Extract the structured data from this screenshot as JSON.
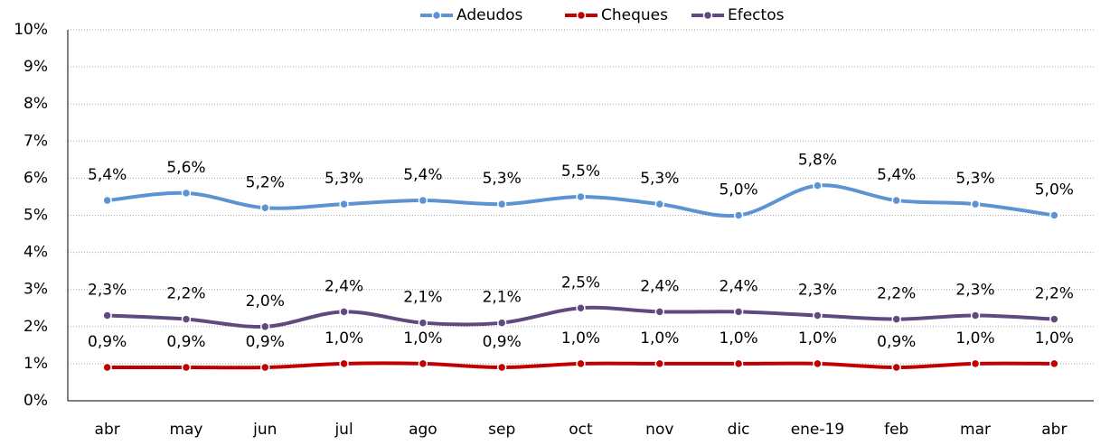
{
  "chart_data": {
    "type": "line",
    "categories": [
      "abr",
      "may",
      "jun",
      "jul",
      "ago",
      "sep",
      "oct",
      "nov",
      "dic",
      "ene-19",
      "feb",
      "mar",
      "abr"
    ],
    "series": [
      {
        "name": "Adeudos",
        "color": "#5b93d3",
        "values": [
          5.4,
          5.6,
          5.2,
          5.3,
          5.4,
          5.3,
          5.5,
          5.3,
          5.0,
          5.8,
          5.4,
          5.3,
          5.0
        ],
        "value_labels": [
          "5,4%",
          "5,6%",
          "5,2%",
          "5,3%",
          "5,4%",
          "5,3%",
          "5,5%",
          "5,3%",
          "5,0%",
          "5,8%",
          "5,4%",
          "5,3%",
          "5,0%"
        ]
      },
      {
        "name": "Cheques",
        "color": "#c00000",
        "values": [
          0.9,
          0.9,
          0.9,
          1.0,
          1.0,
          0.9,
          1.0,
          1.0,
          1.0,
          1.0,
          0.9,
          1.0,
          1.0
        ],
        "value_labels": [
          "0,9%",
          "0,9%",
          "0,9%",
          "1,0%",
          "1,0%",
          "0,9%",
          "1,0%",
          "1,0%",
          "1,0%",
          "1,0%",
          "0,9%",
          "1,0%",
          "1,0%"
        ]
      },
      {
        "name": "Efectos",
        "color": "#5e4a7e",
        "values": [
          2.3,
          2.2,
          2.0,
          2.4,
          2.1,
          2.1,
          2.5,
          2.4,
          2.4,
          2.3,
          2.2,
          2.3,
          2.2
        ],
        "value_labels": [
          "2,3%",
          "2,2%",
          "2,0%",
          "2,4%",
          "2,1%",
          "2,1%",
          "2,5%",
          "2,4%",
          "2,4%",
          "2,3%",
          "2,2%",
          "2,3%",
          "2,2%"
        ]
      }
    ],
    "ylim": [
      0,
      10
    ],
    "yticks": [
      {
        "value": 0,
        "label": "0%"
      },
      {
        "value": 1,
        "label": "1%"
      },
      {
        "value": 2,
        "label": "2%"
      },
      {
        "value": 3,
        "label": "3%"
      },
      {
        "value": 4,
        "label": "4%"
      },
      {
        "value": 5,
        "label": "5%"
      },
      {
        "value": 6,
        "label": "6%"
      },
      {
        "value": 7,
        "label": "7%"
      },
      {
        "value": 8,
        "label": "8%"
      },
      {
        "value": 9,
        "label": "9%"
      },
      {
        "value": 10,
        "label": "10%"
      }
    ],
    "grid": true,
    "smooth": true,
    "legend": "top"
  }
}
